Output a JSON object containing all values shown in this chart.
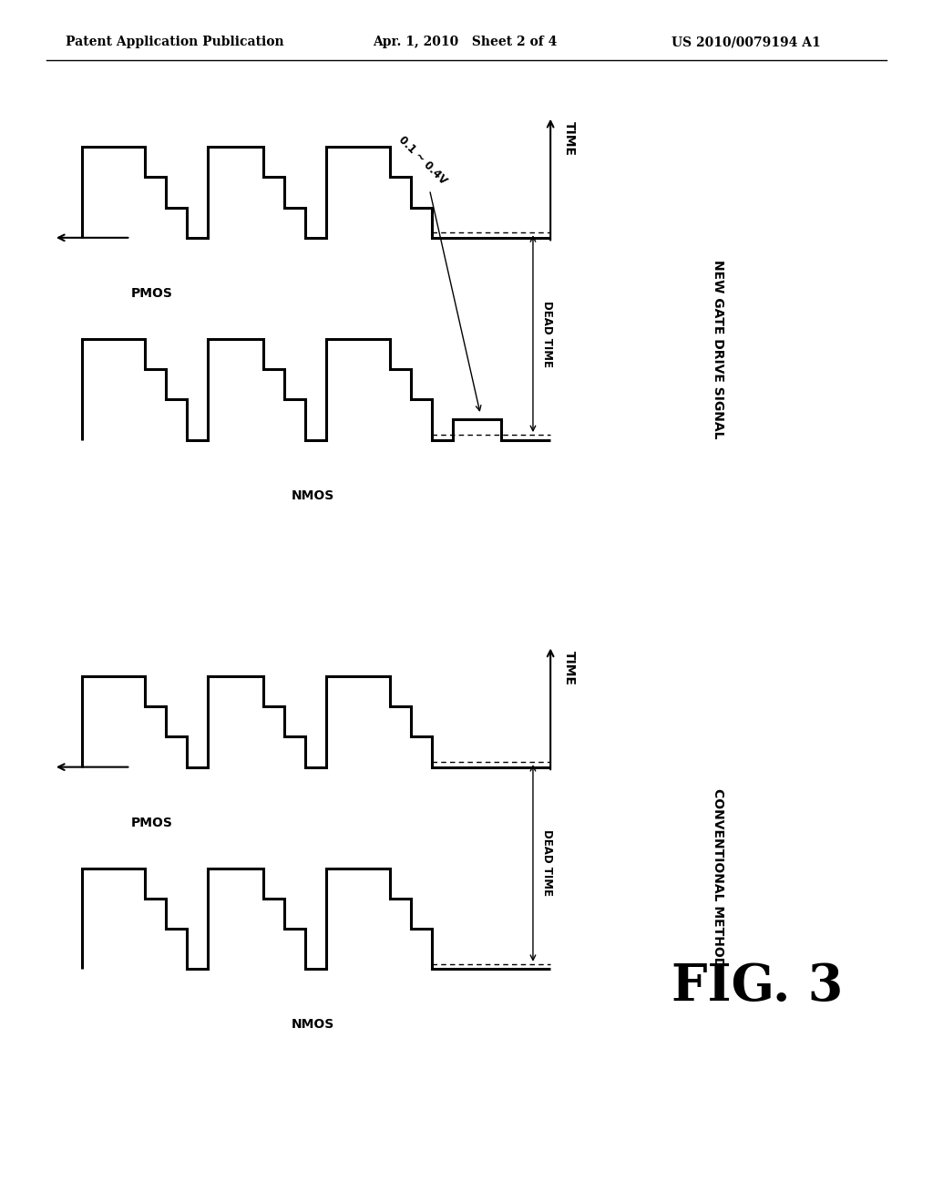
{
  "bg_color": "#ffffff",
  "line_color": "#000000",
  "header_text": "Patent Application Publication",
  "header_date": "Apr. 1, 2010   Sheet 2 of 4",
  "header_patent": "US 2010/0079194 A1",
  "fig_label": "FIG. 3",
  "top_diagram": {
    "title": "NEW GATE DRIVE SIGNAL",
    "time_label": "TIME",
    "dead_time_label": "DEAD TIME",
    "annotation": "0.1 ~ 0.4V",
    "pmos_label": "PMOS",
    "nmos_label": "NMOS"
  },
  "bottom_diagram": {
    "title": "CONVENTIONAL METHOD",
    "time_label": "TIME",
    "dead_time_label": "DEAD TIME",
    "pmos_label": "PMOS",
    "nmos_label": "NMOS"
  }
}
